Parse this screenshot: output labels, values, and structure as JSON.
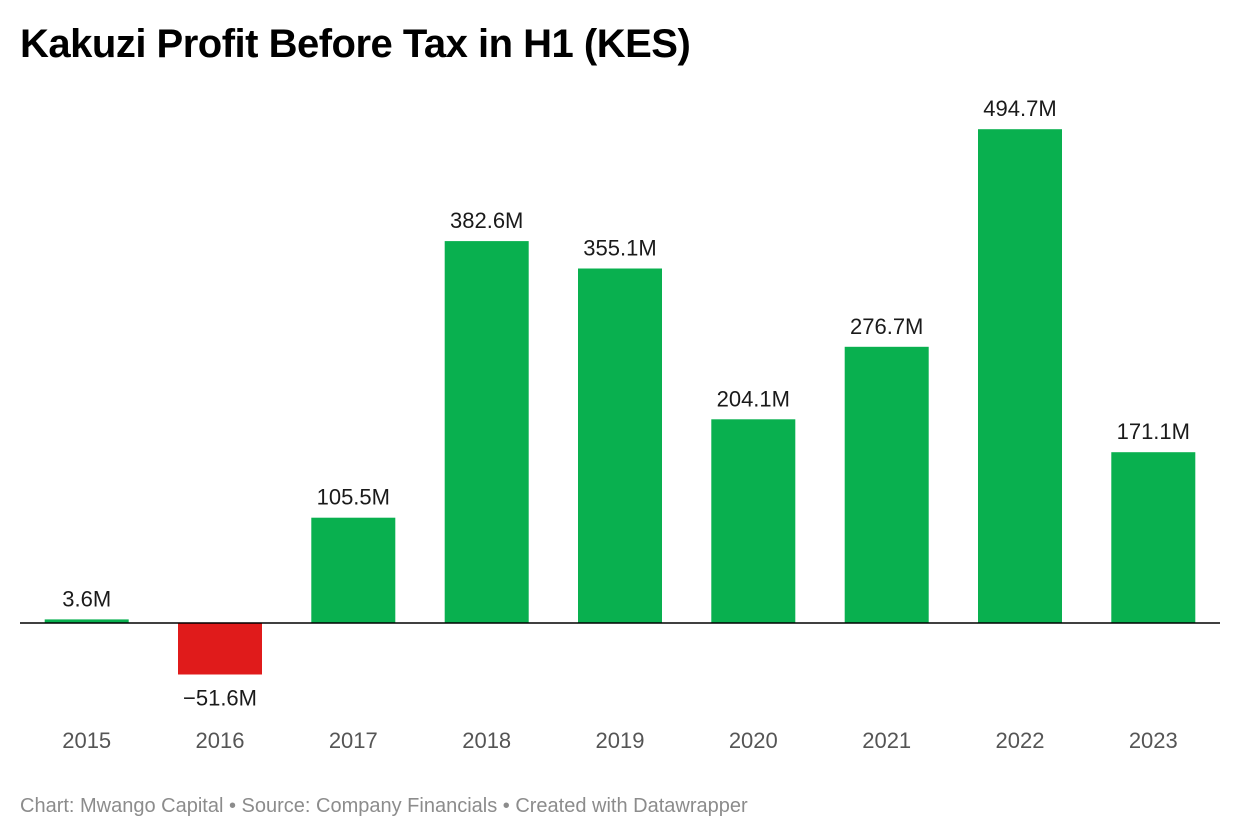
{
  "chart_data": {
    "type": "bar",
    "title": "Kakuzi Profit Before Tax in H1 (KES)",
    "categories": [
      "2015",
      "2016",
      "2017",
      "2018",
      "2019",
      "2020",
      "2021",
      "2022",
      "2023"
    ],
    "values": [
      3.6,
      -51.6,
      105.5,
      382.6,
      355.1,
      204.1,
      276.7,
      494.7,
      171.1
    ],
    "value_labels": [
      "3.6M",
      "−51.6M",
      "105.5M",
      "382.6M",
      "355.1M",
      "204.1M",
      "276.7M",
      "494.7M",
      "171.1M"
    ],
    "unit": "M",
    "xlabel": "",
    "ylabel": "",
    "grid": false,
    "legend": "none",
    "colors": {
      "positive": "#09b04f",
      "negative": "#e01b1b",
      "baseline": "#000000",
      "tick_label": "#555555",
      "value_label": "#1a1a1a"
    }
  },
  "footer": {
    "credit": "Chart: Mwango Capital • Source: Company Financials • Created with Datawrapper"
  }
}
